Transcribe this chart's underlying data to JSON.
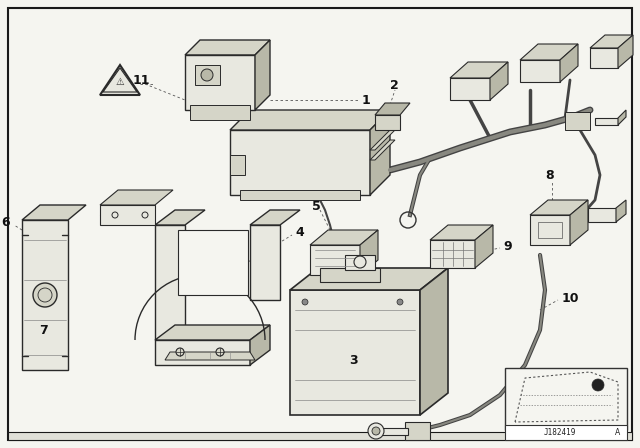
{
  "bg_color": "#f5f5f0",
  "border_color": "#1a1a1a",
  "line_color": "#2a2a2a",
  "fill_light": "#e8e8e0",
  "fill_mid": "#d5d5c8",
  "fill_dark": "#b8b8a8",
  "white": "#ffffff",
  "figsize": [
    6.4,
    4.48
  ],
  "dpi": 100,
  "ref_code": "J182419"
}
